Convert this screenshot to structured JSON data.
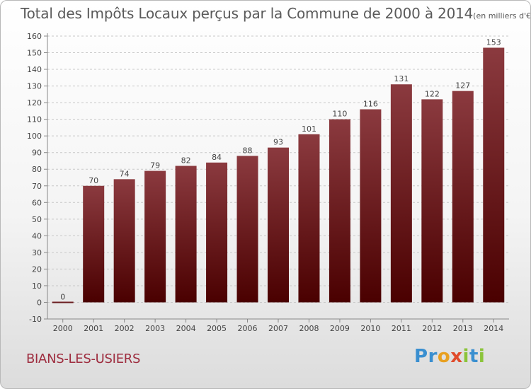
{
  "header": {
    "title": "Total des Impôts Locaux perçus par la Commune de 2000 à 2014",
    "unit": "(en milliers d'€)"
  },
  "footer": {
    "commune": "BIANS-LES-USIERS",
    "logo": "Proxiti"
  },
  "colors": {
    "bar_top": "#8b3a3f",
    "bar_bottom": "#4a0000",
    "commune_text": "#9e2d3f",
    "logo_letters": [
      "#3a8fd0",
      "#3a8fd0",
      "#e8a020",
      "#e04a2a",
      "#8bc43a",
      "#3a8fd0",
      "#8bc43a"
    ]
  },
  "chart_data": {
    "type": "bar",
    "title": "Total des Impôts Locaux perçus par la Commune de 2000 à 2014",
    "categories": [
      "2000",
      "2001",
      "2002",
      "2003",
      "2004",
      "2005",
      "2006",
      "2007",
      "2008",
      "2009",
      "2010",
      "2011",
      "2012",
      "2013",
      "2014"
    ],
    "values": [
      0,
      70,
      74,
      79,
      82,
      84,
      88,
      93,
      101,
      110,
      116,
      131,
      122,
      127,
      153
    ],
    "ylim": [
      -10,
      160
    ],
    "yticks": [
      -10,
      0,
      10,
      20,
      30,
      40,
      50,
      60,
      70,
      80,
      90,
      100,
      110,
      120,
      130,
      140,
      150,
      160
    ],
    "grid": true,
    "legend": "none"
  }
}
